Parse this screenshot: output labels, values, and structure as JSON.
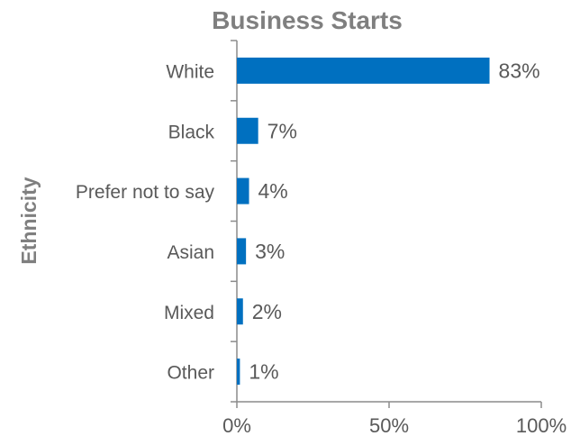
{
  "chart_data": {
    "type": "bar",
    "orientation": "horizontal",
    "title": "Business Starts",
    "xlabel": "",
    "ylabel": "Ethnicity",
    "categories": [
      "White",
      "Black",
      "Prefer not to say",
      "Asian",
      "Mixed",
      "Other"
    ],
    "values": [
      83,
      7,
      4,
      3,
      2,
      1
    ],
    "value_labels": [
      "83%",
      "7%",
      "4%",
      "3%",
      "2%",
      "1%"
    ],
    "xlim": [
      0,
      100
    ],
    "xticks": [
      0,
      50,
      100
    ],
    "xtick_labels": [
      "0%",
      "50%",
      "100%"
    ],
    "grid": false,
    "bar_color": "#0070C0"
  }
}
